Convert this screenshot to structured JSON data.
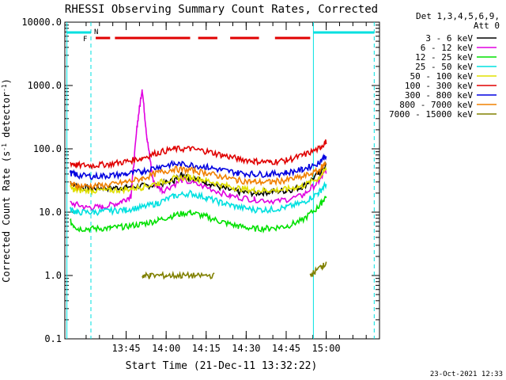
{
  "chart_data": {
    "type": "line",
    "title": "RHESSI Observing Summary Count Rates, Corrected",
    "xlabel": "Start Time (21-Dec-11 13:32:22)",
    "ylabel": "Corrected Count Rate (s⁻¹ detector⁻¹)",
    "ylabel_parts": [
      "Corrected Count Rate (s",
      "-1",
      " detector",
      "-1",
      ")"
    ],
    "y_scale": "log",
    "ylim": [
      0.1,
      10000
    ],
    "xlim_minutes": [
      13.367,
      15.333
    ],
    "x_tick_labels": [
      "13:45",
      "14:00",
      "14:15",
      "14:30",
      "14:45",
      "15:00"
    ],
    "x_tick_minutes": [
      13.75,
      14.0,
      14.25,
      14.5,
      14.75,
      15.0
    ],
    "y_tick_labels": [
      "0.1",
      "1.0",
      "10.0",
      "100.0",
      "1000.0",
      "10000.0"
    ],
    "y_tick_values": [
      0.1,
      1,
      10,
      100,
      1000,
      10000
    ],
    "legend_header": [
      "Det 1,3,4,5,6,9,",
      "Att 0"
    ],
    "legend_position": "right",
    "legend": [
      {
        "label": "3 - 6 keV",
        "color": "#000000"
      },
      {
        "label": "6 - 12 keV",
        "color": "#e000e0"
      },
      {
        "label": "12 - 25 keV",
        "color": "#00e000"
      },
      {
        "label": "25 - 50 keV",
        "color": "#00e0e0"
      },
      {
        "label": "50 - 100 keV",
        "color": "#e0e000"
      },
      {
        "label": "100 - 300 keV",
        "color": "#e00000"
      },
      {
        "label": "300 - 800 keV",
        "color": "#0000e0"
      },
      {
        "label": "800 - 7000 keV",
        "color": "#f08000"
      },
      {
        "label": "7000 - 15000 keV",
        "color": "#808000"
      }
    ],
    "series": [
      {
        "name": "3 - 6 keV",
        "color": "#000000",
        "x": [
          13.4,
          13.45,
          13.55,
          13.65,
          13.75,
          13.85,
          13.95,
          14.05,
          14.1,
          14.15,
          14.25,
          14.35,
          14.45,
          14.55,
          14.65,
          14.75,
          14.85,
          14.95,
          15.0
        ],
        "y": [
          30,
          25,
          24,
          24,
          25,
          26,
          27,
          32,
          40,
          35,
          30,
          24,
          21,
          20,
          21,
          22,
          25,
          40,
          55
        ]
      },
      {
        "name": "6 - 12 keV",
        "color": "#e000e0",
        "x": [
          13.4,
          13.5,
          13.6,
          13.7,
          13.78,
          13.82,
          13.85,
          13.88,
          13.92,
          13.98,
          14.1,
          14.25,
          14.4,
          14.55,
          14.7,
          14.85,
          14.95,
          15.0
        ],
        "y": [
          14,
          12,
          12,
          14,
          18,
          250,
          900,
          150,
          30,
          22,
          32,
          25,
          18,
          16,
          15,
          18,
          30,
          45
        ]
      },
      {
        "name": "12 - 25 keV",
        "color": "#00e000",
        "x": [
          13.4,
          13.45,
          13.55,
          13.65,
          13.75,
          13.85,
          13.95,
          14.05,
          14.15,
          14.25,
          14.35,
          14.45,
          14.55,
          14.65,
          14.75,
          14.85,
          14.95,
          15.0
        ],
        "y": [
          7,
          5.5,
          5.5,
          5.6,
          6,
          6.5,
          7.5,
          9,
          10,
          8.5,
          7,
          6,
          5.5,
          5.6,
          6,
          7.5,
          12,
          18
        ]
      },
      {
        "name": "25 - 50 keV",
        "color": "#00e0e0",
        "x": [
          13.4,
          13.45,
          13.55,
          13.65,
          13.75,
          13.85,
          13.95,
          14.05,
          14.15,
          14.25,
          14.35,
          14.45,
          14.55,
          14.65,
          14.75,
          14.85,
          14.95,
          15.0
        ],
        "y": [
          11,
          10,
          10,
          10.5,
          11,
          12,
          14,
          18,
          20,
          17,
          14,
          12,
          11,
          11,
          12,
          14,
          20,
          28
        ]
      },
      {
        "name": "50 - 100 keV",
        "color": "#e0e000",
        "x": [
          13.4,
          13.45,
          13.55,
          13.65,
          13.75,
          13.85,
          13.95,
          14.05,
          14.15,
          14.25,
          14.35,
          14.45,
          14.55,
          14.65,
          14.75,
          14.85,
          14.95,
          15.0
        ],
        "y": [
          24,
          22,
          22,
          22,
          23,
          25,
          29,
          34,
          36,
          32,
          27,
          24,
          22,
          22,
          23,
          26,
          34,
          48
        ]
      },
      {
        "name": "100 - 300 keV",
        "color": "#e00000",
        "x": [
          13.4,
          13.45,
          13.55,
          13.65,
          13.75,
          13.85,
          13.95,
          14.05,
          14.15,
          14.25,
          14.35,
          14.45,
          14.55,
          14.65,
          14.75,
          14.85,
          14.95,
          15.0
        ],
        "y": [
          60,
          55,
          55,
          58,
          63,
          72,
          88,
          100,
          100,
          92,
          80,
          70,
          64,
          62,
          66,
          78,
          100,
          130
        ]
      },
      {
        "name": "300 - 800 keV",
        "color": "#0000e0",
        "x": [
          13.4,
          13.45,
          13.55,
          13.65,
          13.75,
          13.85,
          13.95,
          14.05,
          14.15,
          14.25,
          14.35,
          14.45,
          14.55,
          14.65,
          14.75,
          14.85,
          14.95,
          15.0
        ],
        "y": [
          42,
          38,
          37,
          38,
          40,
          44,
          52,
          58,
          56,
          52,
          46,
          42,
          40,
          40,
          42,
          47,
          60,
          80
        ]
      },
      {
        "name": "800 - 7000 keV",
        "color": "#f08000",
        "x": [
          13.4,
          13.45,
          13.55,
          13.65,
          13.75,
          13.85,
          13.95,
          14.05,
          14.15,
          14.25,
          14.35,
          14.45,
          14.55,
          14.65,
          14.75,
          14.85,
          14.95,
          15.0
        ],
        "y": [
          28,
          26,
          26,
          27,
          30,
          34,
          42,
          48,
          46,
          42,
          36,
          32,
          30,
          30,
          32,
          36,
          45,
          60
        ]
      },
      {
        "name": "7000 - 15000 keV",
        "color": "#808000",
        "x": [
          13.4,
          13.55,
          13.7,
          13.85,
          13.9,
          14.0,
          14.1,
          14.2,
          14.3,
          14.4,
          14.55,
          14.7,
          14.9,
          14.97,
          15.0
        ],
        "y": [
          null,
          null,
          null,
          1.0,
          1.0,
          1.0,
          1.0,
          1.0,
          1.0,
          null,
          null,
          null,
          1.0,
          1.4,
          1.5
        ]
      }
    ],
    "flags": [
      {
        "label": "F",
        "color": "#e00000",
        "segments_minutes": [
          [
            13.56,
            13.65
          ],
          [
            13.68,
            14.15
          ],
          [
            14.2,
            14.32
          ],
          [
            14.4,
            14.58
          ],
          [
            14.68,
            14.9
          ]
        ]
      },
      {
        "label": "N",
        "color": "#00e0e0",
        "segments_minutes": [
          [
            13.38,
            13.53
          ],
          [
            14.92,
            15.3
          ]
        ]
      }
    ],
    "night_markers_minutes": [
      13.38,
      13.53,
      14.92,
      15.3
    ],
    "footer_date": "23-Oct-2021 12:33"
  }
}
